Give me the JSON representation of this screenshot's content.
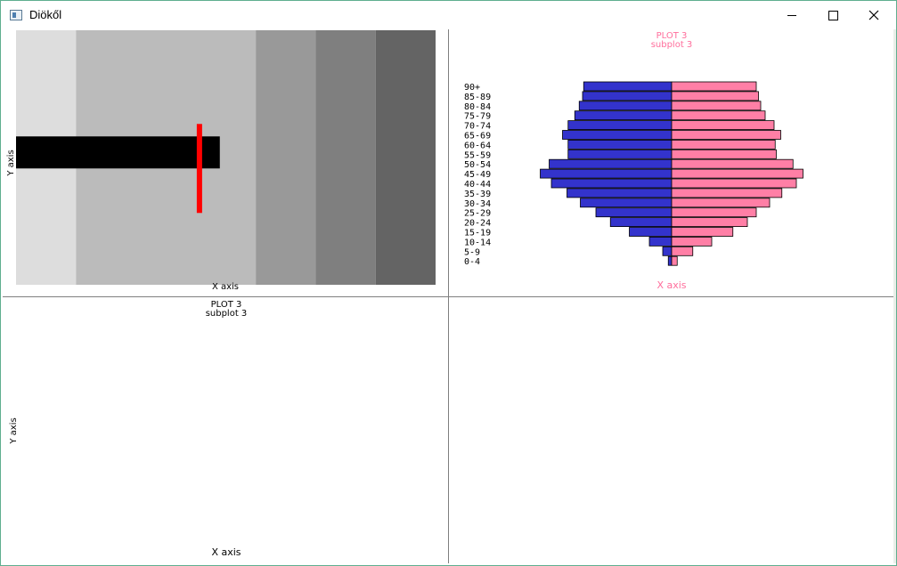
{
  "window": {
    "title": "Diökől"
  },
  "colors": {
    "male": "#3333cc",
    "female": "#ff7fa6",
    "pink_text": "#ff6e9c",
    "error_bar": "#ff0000",
    "stripes": [
      "#dddddd",
      "#bbbbbb",
      "#999999",
      "#7f7f7f",
      "#646464"
    ]
  },
  "panels": {
    "top_left": {
      "xlabel": "X axis",
      "ylabel": "Y axis"
    },
    "top_right": {
      "title": "PLOT 3",
      "subtitle": "subplot 3",
      "xlabel": "X axis",
      "ylabel": ""
    },
    "bottom_left": {
      "title": "PLOT 3",
      "subtitle": "subplot 3",
      "xlabel": "X axis",
      "ylabel": "Y axis"
    }
  },
  "chart_data": [
    {
      "type": "bar",
      "orientation": "horizontal",
      "xlabel": "X axis",
      "ylabel": "Y axis",
      "xlim": [
        0,
        7
      ],
      "ylim": [
        0,
        1
      ],
      "background_bands": [
        {
          "x0": 0,
          "x1": 1,
          "color": "#dddddd"
        },
        {
          "x0": 1,
          "x1": 4,
          "color": "#bbbbbb"
        },
        {
          "x0": 4,
          "x1": 5,
          "color": "#999999"
        },
        {
          "x0": 5,
          "x1": 6,
          "color": "#7f7f7f"
        },
        {
          "x0": 6,
          "x1": 7,
          "color": "#646464"
        }
      ],
      "bars": [
        {
          "y": 0.52,
          "value": 3.4,
          "error": 0.35
        }
      ]
    },
    {
      "type": "bar",
      "orientation": "horizontal",
      "title": "PLOT 3",
      "subtitle": "subplot 3",
      "xlabel": "X axis",
      "categories": [
        "0-4",
        "5-9",
        "10-14",
        "15-19",
        "20-24",
        "25-29",
        "30-34",
        "35-39",
        "40-44",
        "45-49",
        "50-54",
        "55-59",
        "60-64",
        "65-69",
        "70-74",
        "75-79",
        "80-84",
        "85-89",
        "90+"
      ],
      "xlim": [
        -12,
        12
      ],
      "series": [
        {
          "values": [
            -0.3,
            -0.8,
            -2.0,
            -3.8,
            -5.5,
            -6.8,
            -8.2,
            -9.4,
            -10.8,
            -11.8,
            -11.0,
            -9.3,
            -9.3,
            -9.8,
            -9.3,
            -8.7,
            -8.3,
            -8.0,
            -7.9
          ]
        },
        {
          "values": [
            0.5,
            1.9,
            3.6,
            5.5,
            6.8,
            7.6,
            8.8,
            9.9,
            11.2,
            11.8,
            10.9,
            9.4,
            9.3,
            9.8,
            9.2,
            8.4,
            8.0,
            7.8,
            7.6
          ]
        }
      ]
    },
    {
      "type": "line",
      "title": "PLOT 3",
      "subtitle": "subplot 3",
      "xlabel": "X axis",
      "ylabel": "Y axis",
      "series": []
    }
  ]
}
